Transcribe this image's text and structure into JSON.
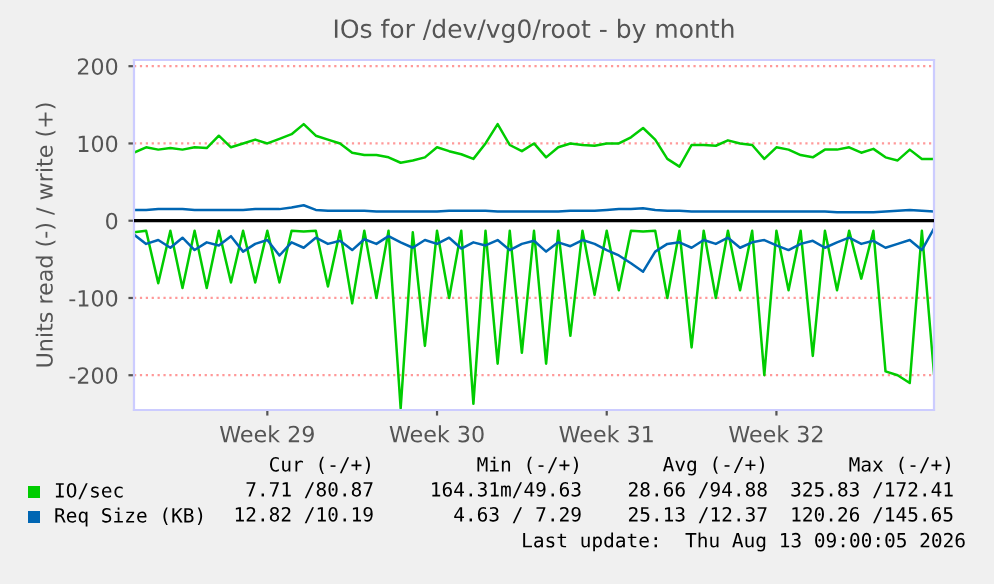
{
  "chart_data": {
    "type": "line",
    "title": "IOs for /dev/vg0/root - by month",
    "ylabel": "Units read (-) / write (+)",
    "categories": [
      null,
      null,
      null,
      null,
      null,
      null,
      null,
      null,
      null,
      null,
      null,
      "Week 29",
      null,
      null,
      null,
      null,
      null,
      null,
      null,
      null,
      null,
      null,
      null,
      null,
      null,
      "Week 30",
      null,
      null,
      null,
      null,
      null,
      null,
      null,
      null,
      null,
      null,
      null,
      null,
      null,
      "Week 31",
      null,
      null,
      null,
      null,
      null,
      null,
      null,
      null,
      null,
      null,
      null,
      null,
      null,
      "Week 32",
      null,
      null,
      null,
      null,
      null,
      null,
      null,
      null,
      null,
      null,
      null,
      null,
      null
    ],
    "ylim": [
      -245,
      208
    ],
    "yticks": [
      -200,
      -100,
      0,
      100,
      200
    ],
    "grid": "y",
    "legend": "bottom",
    "marker": "none",
    "line_style": "solid",
    "ref_lines": [
      {
        "axis": "y",
        "value": 0,
        "color": "#000000"
      }
    ],
    "series": [
      {
        "name": "IO/sec",
        "color": "#00cc00",
        "values": [
          88,
          95,
          92,
          94,
          92,
          95,
          94,
          110,
          95,
          100,
          105,
          100,
          106,
          112,
          125,
          110,
          105,
          100,
          88,
          85,
          85,
          82,
          75,
          78,
          82,
          95,
          90,
          86,
          80,
          100,
          125,
          98,
          90,
          100,
          82,
          95,
          100,
          98,
          97,
          100,
          100,
          108,
          120,
          105,
          80,
          70,
          98,
          98,
          97,
          104,
          100,
          98,
          80,
          95,
          92,
          85,
          82,
          92,
          92,
          95,
          88,
          93,
          82,
          78,
          92,
          80,
          80
        ]
      },
      {
        "color": "#00cc00",
        "values": [
          -15,
          -13,
          -81,
          -13,
          -87,
          -13,
          -87,
          -13,
          -80,
          -13,
          -80,
          -13,
          -80,
          -13,
          -14,
          -13,
          -85,
          -13,
          -107,
          -13,
          -100,
          -13,
          -243,
          -15,
          -162,
          -13,
          -100,
          -13,
          -237,
          -13,
          -185,
          -13,
          -171,
          -13,
          -185,
          -13,
          -149,
          -13,
          -96,
          -13,
          -90,
          -13,
          -14,
          -13,
          -100,
          -13,
          -164,
          -13,
          -100,
          -13,
          -90,
          -13,
          -200,
          -13,
          -90,
          -13,
          -175,
          -13,
          -90,
          -13,
          -75,
          -13,
          -195,
          -200,
          -210,
          -13,
          -198
        ]
      },
      {
        "name": "Req Size (KB)",
        "color": "#0066b3",
        "values": [
          14,
          14,
          15,
          15,
          15,
          14,
          14,
          14,
          14,
          14,
          15,
          15,
          15,
          17,
          20,
          14,
          13,
          13,
          13,
          13,
          12,
          12,
          12,
          12,
          12,
          12,
          13,
          13,
          13,
          13,
          12,
          12,
          12,
          12,
          12,
          12,
          13,
          13,
          13,
          14,
          15,
          15,
          16,
          14,
          13,
          13,
          12,
          12,
          12,
          12,
          12,
          12,
          12,
          12,
          12,
          12,
          12,
          12,
          11,
          11,
          11,
          11,
          12,
          13,
          14,
          13,
          12
        ]
      },
      {
        "color": "#0066b3",
        "values": [
          -18,
          -30,
          -25,
          -35,
          -22,
          -38,
          -28,
          -32,
          -20,
          -40,
          -30,
          -25,
          -45,
          -28,
          -35,
          -22,
          -30,
          -26,
          -38,
          -24,
          -30,
          -20,
          -28,
          -35,
          -25,
          -30,
          -22,
          -36,
          -28,
          -32,
          -25,
          -38,
          -30,
          -26,
          -40,
          -28,
          -33,
          -25,
          -30,
          -38,
          -45,
          -55,
          -66,
          -40,
          -30,
          -28,
          -35,
          -25,
          -30,
          -22,
          -35,
          -28,
          -25,
          -32,
          -38,
          -30,
          -26,
          -35,
          -28,
          -22,
          -30,
          -26,
          -35,
          -30,
          -25,
          -38,
          -10
        ]
      }
    ],
    "annotations": [
      "Cur (-/+)",
      "Min (-/+)",
      "Avg (-/+)",
      "Max (-/+)",
      "7.71 /80.87",
      "164.31m/49.63",
      "28.66 /94.88",
      "325.83 /172.41",
      "12.82 /10.19",
      "4.63 / 7.29",
      "25.13 /12.37",
      "120.26 /145.65",
      "Last update:  Thu Aug 13 09:00:05 2026"
    ]
  }
}
